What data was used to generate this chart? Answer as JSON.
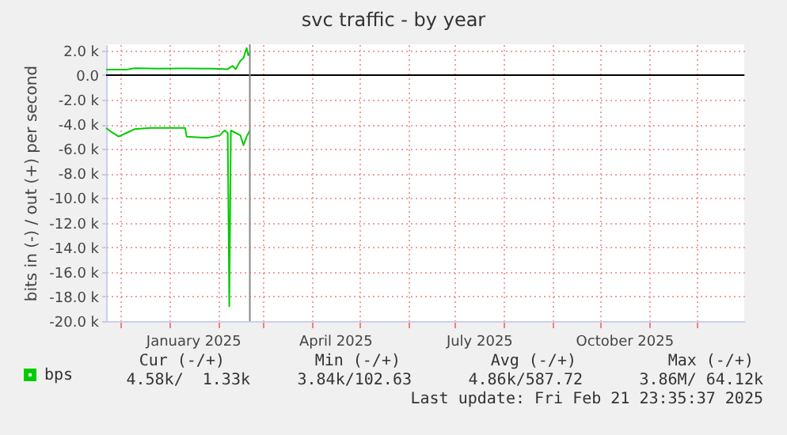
{
  "chart_data": {
    "type": "line",
    "title": "svc traffic - by year",
    "ylabel": "bits in (-) / out (+) per second",
    "series": [
      {
        "name": "bps",
        "color": "#00cc00",
        "x": [
          "2024-11-22",
          "2024-12-05",
          "2024-12-10",
          "2024-12-25",
          "2025-01-11",
          "2025-01-28",
          "2025-02-07",
          "2025-02-10",
          "2025-02-12",
          "2025-02-15",
          "2025-02-17",
          "2025-02-19",
          "2025-02-20",
          "2025-02-21"
        ],
        "values": [
          450,
          450,
          550,
          520,
          540,
          520,
          480,
          750,
          480,
          1150,
          1400,
          2200,
          1600,
          1800
        ]
      },
      {
        "color": "#00cc00",
        "x": [
          "2024-11-22",
          "2024-11-25",
          "2024-11-30",
          "2024-12-05",
          "2024-12-10",
          "2024-12-20",
          "2025-01-11",
          "2025-01-12",
          "2025-01-25",
          "2025-02-02",
          "2025-02-05",
          "2025-02-07",
          "2025-02-08",
          "2025-02-09",
          "2025-02-12",
          "2025-02-15",
          "2025-02-17",
          "2025-02-19",
          "2025-02-21"
        ],
        "values": [
          -4300,
          -4600,
          -5000,
          -4700,
          -4400,
          -4300,
          -4300,
          -5000,
          -5100,
          -4900,
          -4500,
          -4700,
          -18800,
          -4500,
          -4700,
          -4900,
          -5700,
          -5000,
          -4500
        ]
      }
    ],
    "xlim": [
      "2024-11-22",
      "2025-12-31"
    ],
    "xticks": [
      {
        "value": "2024-12-01",
        "label": null
      },
      {
        "value": "2025-01-01",
        "label": null
      },
      {
        "value": "2025-01-16",
        "label": "January 2025"
      },
      {
        "value": "2025-02-01",
        "label": null
      },
      {
        "value": "2025-03-01",
        "label": null
      },
      {
        "value": "2025-04-01",
        "label": null
      },
      {
        "value": "2025-04-16",
        "label": "April 2025"
      },
      {
        "value": "2025-05-01",
        "label": null
      },
      {
        "value": "2025-06-01",
        "label": null
      },
      {
        "value": "2025-07-01",
        "label": null
      },
      {
        "value": "2025-07-16",
        "label": "July 2025"
      },
      {
        "value": "2025-08-01",
        "label": null
      },
      {
        "value": "2025-09-01",
        "label": null
      },
      {
        "value": "2025-10-01",
        "label": null
      },
      {
        "value": "2025-10-16",
        "label": "October 2025"
      },
      {
        "value": "2025-11-01",
        "label": null
      },
      {
        "value": "2025-12-01",
        "label": null
      }
    ],
    "ylim": [
      -20000,
      2500
    ],
    "yticks": [
      {
        "value": 2000,
        "label": "2.0 k"
      },
      {
        "value": 0,
        "label": "0.0"
      },
      {
        "value": -2000,
        "label": "-2.0 k"
      },
      {
        "value": -4000,
        "label": "-4.0 k"
      },
      {
        "value": -6000,
        "label": "-6.0 k"
      },
      {
        "value": -8000,
        "label": "-8.0 k"
      },
      {
        "value": -10000,
        "label": "-10.0 k"
      },
      {
        "value": -12000,
        "label": "-12.0 k"
      },
      {
        "value": -14000,
        "label": "-14.0 k"
      },
      {
        "value": -16000,
        "label": "-16.0 k"
      },
      {
        "value": -18000,
        "label": "-18.0 k"
      },
      {
        "value": -20000,
        "label": "-20.0 k"
      }
    ],
    "ref_lines": [
      {
        "axis": "y",
        "value": 0,
        "color": "#000000"
      },
      {
        "axis": "x",
        "value": "2025-02-21",
        "color": "#888888"
      }
    ],
    "grid": true,
    "legend": "bottom left",
    "annotations": [
      "Cur (-/+)",
      "Min (-/+)",
      "Avg (-/+)",
      "Max (-/+)",
      "4.58k/  1.33k",
      "3.84k/102.63",
      "4.86k/587.72",
      "3.86M/ 64.12k",
      "Last update: Fri Feb 21 23:35:37 2025"
    ]
  }
}
